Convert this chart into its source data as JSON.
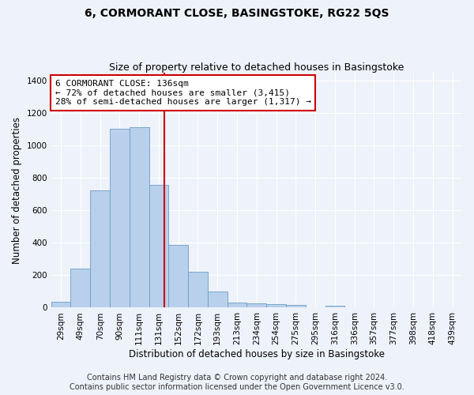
{
  "title": "6, CORMORANT CLOSE, BASINGSTOKE, RG22 5QS",
  "subtitle": "Size of property relative to detached houses in Basingstoke",
  "xlabel": "Distribution of detached houses by size in Basingstoke",
  "ylabel": "Number of detached properties",
  "footer_line1": "Contains HM Land Registry data © Crown copyright and database right 2024.",
  "footer_line2": "Contains public sector information licensed under the Open Government Licence v3.0.",
  "categories": [
    "29sqm",
    "49sqm",
    "70sqm",
    "90sqm",
    "111sqm",
    "131sqm",
    "152sqm",
    "172sqm",
    "193sqm",
    "213sqm",
    "234sqm",
    "254sqm",
    "275sqm",
    "295sqm",
    "316sqm",
    "336sqm",
    "357sqm",
    "377sqm",
    "398sqm",
    "418sqm",
    "439sqm"
  ],
  "values": [
    35,
    240,
    725,
    1105,
    1115,
    760,
    385,
    220,
    100,
    30,
    25,
    20,
    15,
    0,
    10,
    0,
    0,
    0,
    0,
    0,
    0
  ],
  "bar_color": "#b8d0eb",
  "bar_edge_color": "#6a9ec5",
  "annotation_text": "6 CORMORANT CLOSE: 136sqm\n← 72% of detached houses are smaller (3,415)\n28% of semi-detached houses are larger (1,317) →",
  "vline_color": "#cc0000",
  "vline_x": 5.3,
  "annotation_box_color": "#ffffff",
  "annotation_box_edge": "#cc0000",
  "ylim": [
    0,
    1450
  ],
  "yticks": [
    0,
    200,
    400,
    600,
    800,
    1000,
    1200,
    1400
  ],
  "background_color": "#eef2fa",
  "grid_color": "#ffffff",
  "title_fontsize": 10,
  "subtitle_fontsize": 9,
  "axis_label_fontsize": 8.5,
  "tick_fontsize": 7.5,
  "annotation_fontsize": 8,
  "footer_fontsize": 7
}
